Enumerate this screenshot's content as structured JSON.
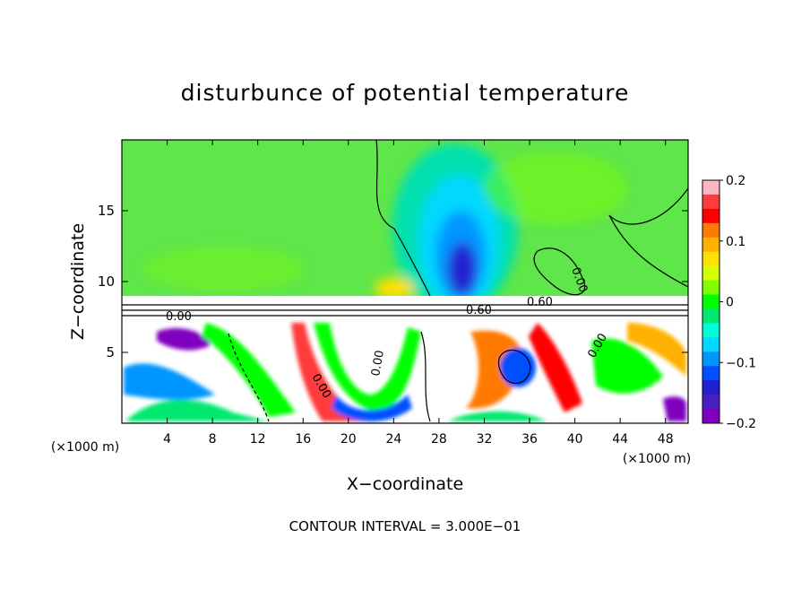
{
  "chart_data": {
    "type": "heatmap",
    "title": "disturbunce of potential temperature",
    "xlabel": "X−coordinate",
    "ylabel": "Z−coordinate",
    "x_unit": "(×1000 m)",
    "x_unit_right": "(×1000 m)",
    "xlim": [
      0,
      50
    ],
    "ylim": [
      0,
      20
    ],
    "x_ticks": [
      4,
      8,
      12,
      16,
      20,
      24,
      28,
      32,
      36,
      40,
      44,
      48
    ],
    "y_ticks": [
      5,
      10,
      15
    ],
    "colorbar": {
      "ticks": [
        0.2,
        0.1,
        0,
        -0.1,
        -0.2
      ],
      "tick_labels": [
        "0.2",
        "0.1",
        "0",
        "−0.1",
        "−0.2"
      ],
      "range": [
        -0.2,
        0.2
      ],
      "colors": [
        "#ffb6c1",
        "#ff3b3b",
        "#ff0000",
        "#ff7a00",
        "#ffb000",
        "#ffe000",
        "#d4ff00",
        "#80ff00",
        "#00ff00",
        "#00e870",
        "#00ffd8",
        "#00d8ff",
        "#0096ff",
        "#0050ff",
        "#2020d0",
        "#4820c0",
        "#8000c0"
      ]
    },
    "contour_labels": [
      "0.00",
      "0.00",
      "0.60",
      "0.60",
      "0.00",
      "0.00",
      "0.00"
    ],
    "footer": "CONTOUR INTERVAL = 3.000E−01"
  }
}
